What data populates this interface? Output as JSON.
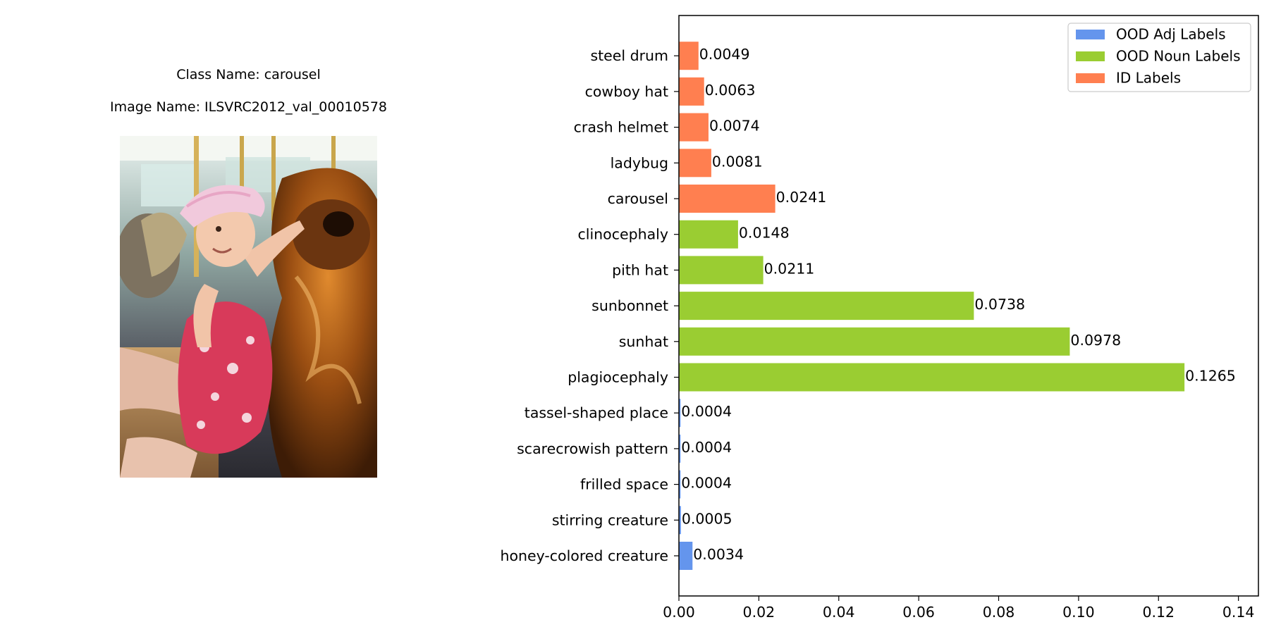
{
  "image_panel": {
    "class_caption": "Class Name: carousel",
    "image_caption": "Image Name: ILSVRC2012_val_00010578"
  },
  "colors": {
    "ood_adj": "#6495ED",
    "ood_noun": "#9ACD32",
    "id": "#FF7F50"
  },
  "chart_data": {
    "type": "bar",
    "orientation": "horizontal",
    "categories": [
      "honey-colored creature",
      "stirring creature",
      "frilled space",
      "scarecrowish pattern",
      "tassel-shaped place",
      "plagiocephaly",
      "sunhat",
      "sunbonnet",
      "pith hat",
      "clinocephaly",
      "carousel",
      "ladybug",
      "crash helmet",
      "cowboy hat",
      "steel drum"
    ],
    "values": [
      0.0034,
      0.0005,
      0.0004,
      0.0004,
      0.0004,
      0.1265,
      0.0978,
      0.0738,
      0.0211,
      0.0148,
      0.0241,
      0.0081,
      0.0074,
      0.0063,
      0.0049
    ],
    "value_labels": [
      "0.0034",
      "0.0005",
      "0.0004",
      "0.0004",
      "0.0004",
      "0.1265",
      "0.0978",
      "0.0738",
      "0.0211",
      "0.0148",
      "0.0241",
      "0.0081",
      "0.0074",
      "0.0063",
      "0.0049"
    ],
    "groups": [
      "ood_adj",
      "ood_adj",
      "ood_adj",
      "ood_adj",
      "ood_adj",
      "ood_noun",
      "ood_noun",
      "ood_noun",
      "ood_noun",
      "ood_noun",
      "id",
      "id",
      "id",
      "id",
      "id"
    ],
    "legend": [
      {
        "key": "ood_adj",
        "label": "OOD Adj Labels"
      },
      {
        "key": "ood_noun",
        "label": "OOD Noun Labels"
      },
      {
        "key": "id",
        "label": "ID Labels"
      }
    ],
    "legend_position": "top-right",
    "xlim": [
      0,
      0.145
    ],
    "xticks": [
      0.0,
      0.02,
      0.04,
      0.06,
      0.08,
      0.1,
      0.12,
      0.14
    ],
    "xtick_labels": [
      "0.00",
      "0.02",
      "0.04",
      "0.06",
      "0.08",
      "0.10",
      "0.12",
      "0.14"
    ],
    "grid": false
  }
}
